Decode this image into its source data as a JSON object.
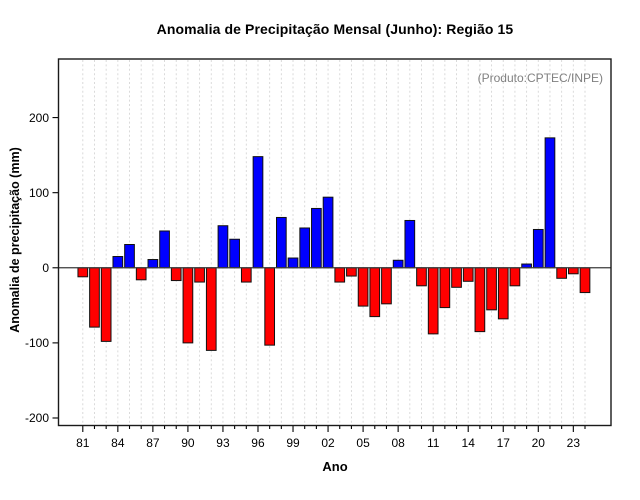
{
  "chart_data": {
    "type": "bar",
    "title": "Anomalia de Precipitação Mensal (Junho): Região 15",
    "xlabel": "Ano",
    "ylabel": "Anomalia de precipitação (mm)",
    "annotation": "(Produto:CPTEC/INPE)",
    "x": [
      1981,
      1982,
      1983,
      1984,
      1985,
      1986,
      1987,
      1988,
      1989,
      1990,
      1991,
      1992,
      1993,
      1994,
      1995,
      1996,
      1997,
      1998,
      1999,
      2000,
      2001,
      2002,
      2003,
      2004,
      2005,
      2006,
      2007,
      2008,
      2009,
      2010,
      2011,
      2012,
      2013,
      2014,
      2015,
      2016,
      2017,
      2018,
      2019,
      2020,
      2021,
      2022,
      2023,
      2024
    ],
    "values": [
      -12,
      -79,
      -98,
      15,
      31,
      -16,
      11,
      49,
      -17,
      -100,
      -19,
      -110,
      56,
      38,
      -19,
      148,
      -103,
      67,
      13,
      53,
      79,
      94,
      -19,
      -11,
      -51,
      -65,
      -48,
      10,
      63,
      -24,
      -88,
      -53,
      -26,
      -18,
      -85,
      -56,
      -68,
      -24,
      5,
      51,
      173,
      -14,
      -8,
      -33
    ],
    "x_tick_labels": [
      "81",
      "84",
      "87",
      "90",
      "93",
      "96",
      "99",
      "02",
      "05",
      "08",
      "11",
      "14",
      "17",
      "20",
      "23"
    ],
    "x_tick_every": 3,
    "yticks": [
      -200,
      -100,
      0,
      100,
      200
    ],
    "ylim": [
      -210,
      278
    ],
    "grid": "vertical-dashed",
    "legend": "none",
    "colors": {
      "positive": "#0000FF",
      "negative": "#FF0000",
      "bar_border": "#111111",
      "gridline": "#D6D6D6",
      "zero_line": "#3C3C3C",
      "frame": "#1A1A1A",
      "annotation": "#808080"
    }
  }
}
